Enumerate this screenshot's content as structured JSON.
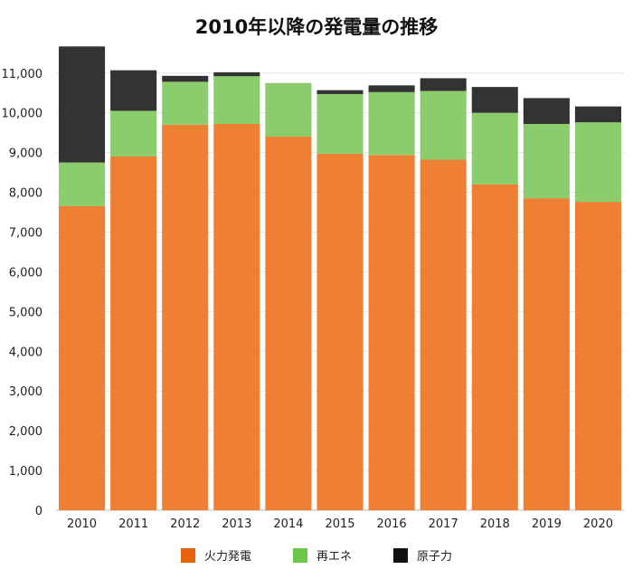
{
  "chart_data": {
    "type": "bar",
    "stacked": true,
    "title": "2010年以降の発電量の推移",
    "xlabel": "",
    "ylabel": "",
    "categories": [
      "2010",
      "2011",
      "2012",
      "2013",
      "2014",
      "2015",
      "2016",
      "2017",
      "2018",
      "2019",
      "2020"
    ],
    "series": [
      {
        "name": "火力発電",
        "color": "#ee7f33",
        "values": [
          7650,
          8900,
          9700,
          9720,
          9400,
          8970,
          8940,
          8820,
          8200,
          7850,
          7760
        ]
      },
      {
        "name": "再エネ",
        "color": "#8bcd6c",
        "values": [
          1100,
          1150,
          1080,
          1200,
          1350,
          1500,
          1580,
          1730,
          1800,
          1870,
          2000
        ]
      },
      {
        "name": "原子力",
        "color": "#333333",
        "values": [
          2920,
          1020,
          150,
          100,
          0,
          100,
          170,
          320,
          650,
          650,
          400
        ]
      }
    ],
    "ylim": [
      0,
      11700
    ],
    "yticks": [
      0,
      1000,
      2000,
      3000,
      4000,
      5000,
      6000,
      7000,
      8000,
      9000,
      10000,
      11000
    ],
    "ytick_labels": [
      "0",
      "1,000",
      "2,000",
      "3,000",
      "4,000",
      "5,000",
      "6,000",
      "7,000",
      "8,000",
      "9,000",
      "10,000",
      "11,000"
    ],
    "grid": true,
    "legend_position": "bottom",
    "legend": [
      {
        "label": "火力発電",
        "color": "#e8640c"
      },
      {
        "label": "再エネ",
        "color": "#6cc64a"
      },
      {
        "label": "原子力",
        "color": "#111111"
      }
    ]
  }
}
